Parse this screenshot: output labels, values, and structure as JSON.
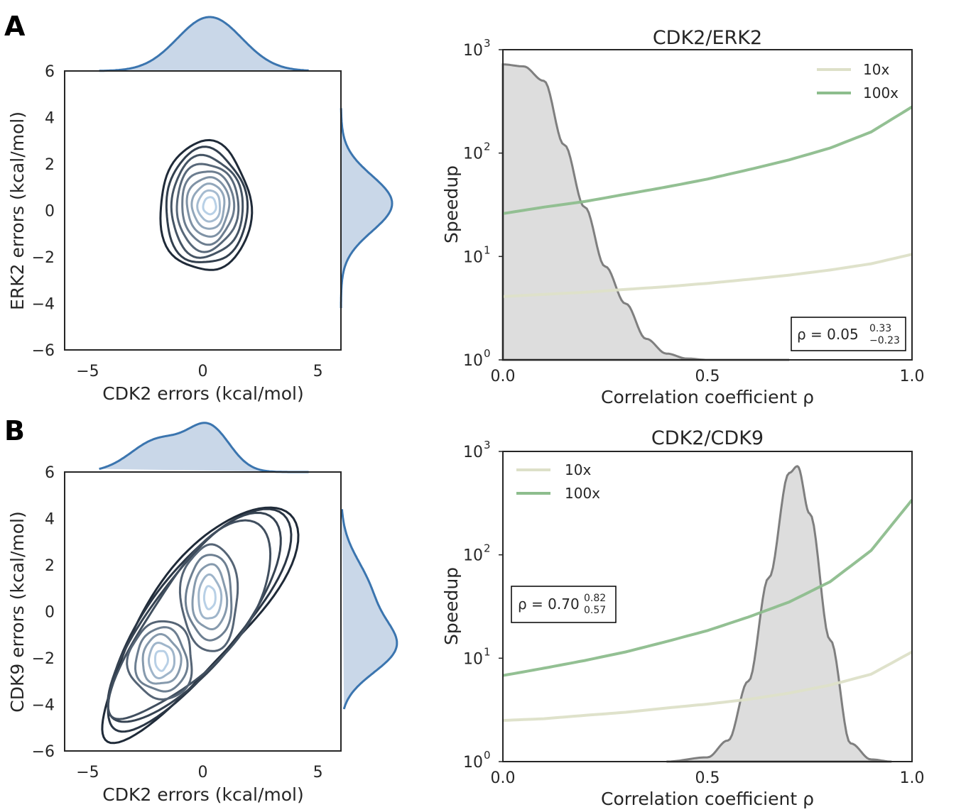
{
  "panels": [
    {
      "letter": "A",
      "joint": {
        "xlabel": "CDK2 errors (kcal/mol)",
        "ylabel": "ERK2 errors (kcal/mol)",
        "xticks": [
          "−5",
          "0",
          "5"
        ],
        "yticks": [
          "−6",
          "−4",
          "−2",
          "0",
          "2",
          "4",
          "6"
        ]
      },
      "speedup": {
        "title": "CDK2/ERK2",
        "xlabel": "Correlation coefficient ρ",
        "ylabel": "Speedup",
        "xticks": [
          "0.0",
          "0.5",
          "1.0"
        ],
        "yticks_base": [
          "10",
          "10",
          "10",
          "10"
        ],
        "yticks_exp": [
          "0",
          "1",
          "2",
          "3"
        ],
        "legend": [
          "10x",
          "100x"
        ],
        "annotation": {
          "prefix": "ρ = 0.05",
          "sup": "0.33",
          "sub": "−0.23"
        }
      }
    },
    {
      "letter": "B",
      "joint": {
        "xlabel": "CDK2 errors (kcal/mol)",
        "ylabel": "CDK9 errors (kcal/mol)",
        "xticks": [
          "−5",
          "0",
          "5"
        ],
        "yticks": [
          "−6",
          "−4",
          "−2",
          "0",
          "2",
          "4",
          "6"
        ]
      },
      "speedup": {
        "title": "CDK2/CDK9",
        "xlabel": "Correlation coefficient ρ",
        "ylabel": "Speedup",
        "xticks": [
          "0.0",
          "0.5",
          "1.0"
        ],
        "yticks_base": [
          "10",
          "10",
          "10",
          "10"
        ],
        "yticks_exp": [
          "0",
          "1",
          "2",
          "3"
        ],
        "legend": [
          "10x",
          "100x"
        ],
        "annotation": {
          "prefix": "ρ = 0.70",
          "sup": "0.82",
          "sub": "0.57"
        }
      }
    }
  ],
  "colors": {
    "kde": "#3b75af",
    "kde_fill": "#c9d7e8",
    "contour_dark": "#1f2a38",
    "contour_light": "#b8d0e6",
    "line_10x": "#dde0c8",
    "line_100x": "#8dbd8d",
    "posterior_fill": "#dddddd",
    "posterior_line": "#7f7f7f"
  },
  "chart_data": [
    {
      "type": "line",
      "title": "CDK2/ERK2",
      "xlabel": "Correlation coefficient ρ",
      "ylabel": "Speedup",
      "yscale": "log",
      "xlim": [
        0,
        1
      ],
      "ylim": [
        1,
        1000
      ],
      "x": [
        0,
        0.1,
        0.2,
        0.3,
        0.4,
        0.5,
        0.6,
        0.7,
        0.8,
        0.9,
        1.0
      ],
      "series": [
        {
          "name": "10x",
          "values": [
            4.1,
            4.3,
            4.5,
            4.8,
            5.1,
            5.5,
            6.0,
            6.6,
            7.4,
            8.5,
            10.5
          ]
        },
        {
          "name": "100x",
          "values": [
            26,
            30,
            34,
            40,
            47,
            56,
            69,
            86,
            112,
            160,
            280
          ]
        }
      ],
      "posterior": {
        "x": [
          0.0,
          0.05,
          0.1,
          0.15,
          0.2,
          0.25,
          0.3,
          0.35,
          0.4,
          0.45,
          0.5,
          0.6,
          0.7
        ],
        "density": [
          720,
          690,
          500,
          120,
          30,
          8,
          3.5,
          1.6,
          1.15,
          1.03,
          1.0,
          1.0,
          1.0
        ]
      },
      "annotation": "ρ = 0.05 (+0.33, −0.23)"
    },
    {
      "type": "line",
      "title": "CDK2/CDK9",
      "xlabel": "Correlation coefficient ρ",
      "ylabel": "Speedup",
      "yscale": "log",
      "xlim": [
        0,
        1
      ],
      "ylim": [
        1,
        1000
      ],
      "x": [
        0,
        0.1,
        0.2,
        0.3,
        0.4,
        0.5,
        0.6,
        0.7,
        0.8,
        0.9,
        1.0
      ],
      "series": [
        {
          "name": "10x",
          "values": [
            2.5,
            2.6,
            2.8,
            3.0,
            3.3,
            3.6,
            4.0,
            4.6,
            5.5,
            7.0,
            11.5
          ]
        },
        {
          "name": "100x",
          "values": [
            6.8,
            8.0,
            9.5,
            11.5,
            14.5,
            18.5,
            25,
            35,
            55,
            110,
            340
          ]
        }
      ],
      "posterior": {
        "x": [
          0.4,
          0.5,
          0.55,
          0.6,
          0.65,
          0.7,
          0.72,
          0.75,
          0.8,
          0.85,
          0.9,
          0.95
        ],
        "density": [
          1.0,
          1.1,
          1.6,
          6,
          60,
          620,
          720,
          250,
          15,
          1.5,
          1.05,
          1.0
        ]
      },
      "annotation": "ρ = 0.70 (0.82, 0.57)"
    },
    {
      "type": "heatmap",
      "subtype": "kde-contour",
      "xlabel": "CDK2 errors (kcal/mol)",
      "ylabel": "ERK2 errors (kcal/mol)",
      "xlim": [
        -6,
        6
      ],
      "ylim": [
        -6,
        6
      ],
      "mode": {
        "x": 0.3,
        "y": 0.3
      }
    },
    {
      "type": "heatmap",
      "subtype": "kde-contour",
      "xlabel": "CDK2 errors (kcal/mol)",
      "ylabel": "CDK9 errors (kcal/mol)",
      "xlim": [
        -6,
        6
      ],
      "ylim": [
        -6,
        6
      ],
      "modes": [
        {
          "x": 0.3,
          "y": 0.6
        },
        {
          "x": -1.8,
          "y": -2.1
        }
      ]
    }
  ]
}
